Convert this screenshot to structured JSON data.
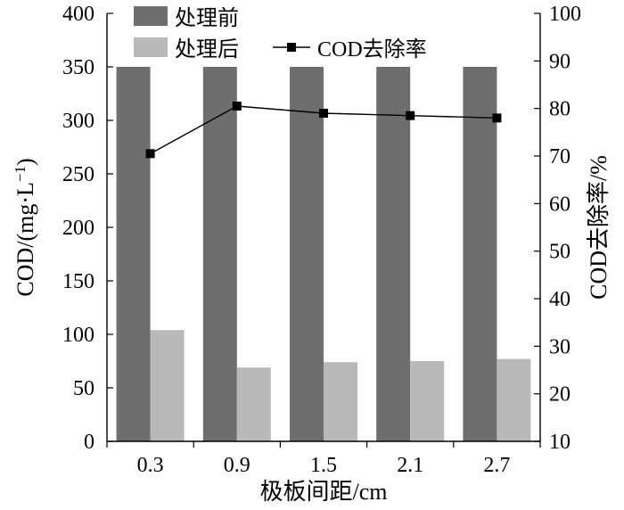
{
  "chart_data": {
    "type": "bar",
    "categories": [
      "0.3",
      "0.9",
      "1.5",
      "2.1",
      "2.7"
    ],
    "series": [
      {
        "name": "处理前",
        "kind": "bar",
        "axis": "left",
        "color": "#6e6e6e",
        "values": [
          350,
          350,
          350,
          350,
          350
        ]
      },
      {
        "name": "处理后",
        "kind": "bar",
        "axis": "left",
        "color": "#b9b9b9",
        "values": [
          104,
          69,
          74,
          75,
          77
        ]
      },
      {
        "name": "COD去除率",
        "kind": "line",
        "axis": "right",
        "color": "#000000",
        "marker": "square",
        "values": [
          70.5,
          80.5,
          79.0,
          78.5,
          78.0
        ]
      }
    ],
    "xlabel": "极板间距/cm",
    "ylabel_left": "COD/(mg·L",
    "ylabel_left_sup": "−1",
    "ylabel_left_close": ")",
    "ylabel_right": "COD去除率/%",
    "ylim_left": [
      0,
      400
    ],
    "ylim_right": [
      10,
      100
    ],
    "yticks_left": [
      "0",
      "50",
      "100",
      "150",
      "200",
      "250",
      "300",
      "350",
      "400"
    ],
    "yticks_right": [
      "10",
      "20",
      "30",
      "40",
      "50",
      "60",
      "70",
      "80",
      "90",
      "100"
    ],
    "grid": false,
    "legend_position": "top"
  }
}
